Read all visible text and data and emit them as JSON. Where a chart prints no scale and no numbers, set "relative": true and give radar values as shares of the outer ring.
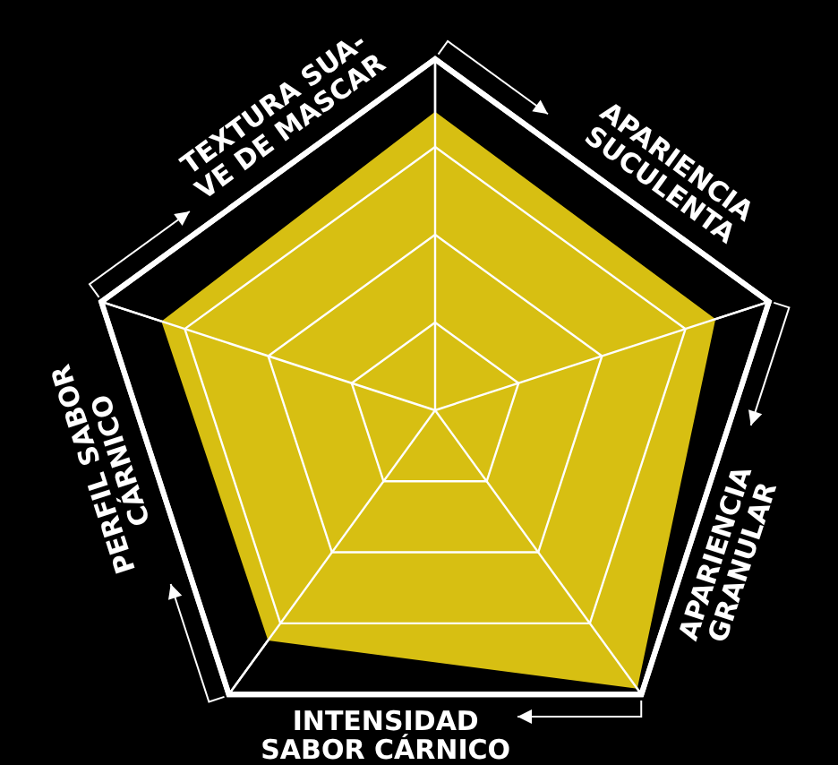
{
  "chart_data": {
    "type": "radar",
    "relative": true,
    "grid": true,
    "categories": [
      "TEXTURA SUA-\nVE DE MASCAR",
      "APARIENCIA\nSUCULENTA",
      "APARIENCIA\nGRANULAR",
      "INTENSIDAD\nSABOR CÁRNICO",
      "PERFIL SABOR\nCÁRNICO"
    ],
    "series": [
      {
        "color": "#d7bf12",
        "values": [
          0.85,
          0.84,
          0.98,
          0.81,
          0.82
        ]
      }
    ]
  }
}
